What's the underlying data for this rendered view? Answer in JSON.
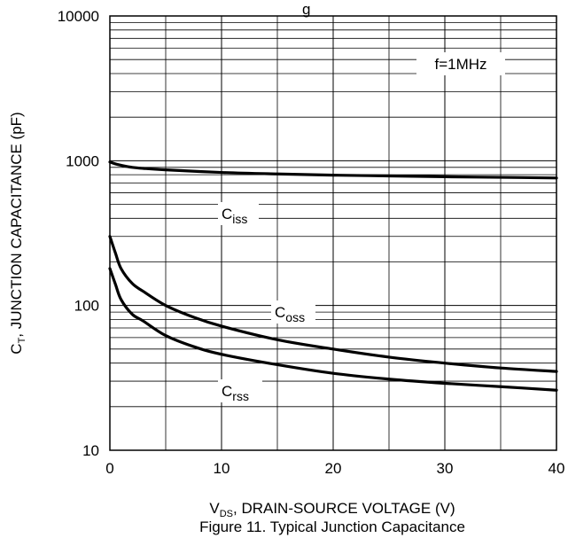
{
  "chart_data": {
    "type": "line",
    "title": "Figure 11. Typical Junction Capacitance",
    "top_text_fragment": "g",
    "xlabel": {
      "main": "V",
      "sub": "DS",
      "rest": ", DRAIN-SOURCE VOLTAGE (V)"
    },
    "ylabel": {
      "main": "C",
      "sub": "T",
      "rest": ", JUNCTION CAPACITANCE (pF)"
    },
    "xlim": [
      0,
      40
    ],
    "ylim": [
      10,
      10000
    ],
    "yscale": "log",
    "grid": true,
    "x_ticks": [
      {
        "value": 0,
        "label": "0"
      },
      {
        "value": 10,
        "label": "10"
      },
      {
        "value": 20,
        "label": "20"
      },
      {
        "value": 30,
        "label": "30"
      },
      {
        "value": 40,
        "label": "40"
      }
    ],
    "y_ticks": [
      {
        "value": 10,
        "label": "10"
      },
      {
        "value": 100,
        "label": "100"
      },
      {
        "value": 1000,
        "label": "1000"
      },
      {
        "value": 10000,
        "label": "10000"
      }
    ],
    "annotation": "f=1MHz",
    "series": [
      {
        "name": "Ciss",
        "label_main": "C",
        "label_sub": "iss",
        "x": [
          0,
          0.5,
          1,
          2,
          3,
          5,
          10,
          15,
          20,
          25,
          30,
          35,
          40
        ],
        "y": [
          980,
          950,
          930,
          900,
          885,
          865,
          830,
          810,
          795,
          785,
          775,
          768,
          760
        ]
      },
      {
        "name": "Coss",
        "label_main": "C",
        "label_sub": "oss",
        "x": [
          0,
          0.5,
          1,
          2,
          3,
          5,
          7.5,
          10,
          15,
          20,
          25,
          30,
          35,
          40
        ],
        "y": [
          300,
          230,
          180,
          142,
          125,
          100,
          83,
          72,
          58,
          50,
          44,
          40,
          37,
          35
        ]
      },
      {
        "name": "Crss",
        "label_main": "C",
        "label_sub": "rss",
        "x": [
          0,
          0.5,
          1,
          2,
          3,
          5,
          7.5,
          10,
          15,
          20,
          25,
          30,
          35,
          40
        ],
        "y": [
          180,
          140,
          110,
          87,
          78,
          62,
          52,
          46,
          39,
          34,
          31,
          29,
          27.5,
          26
        ]
      }
    ]
  }
}
